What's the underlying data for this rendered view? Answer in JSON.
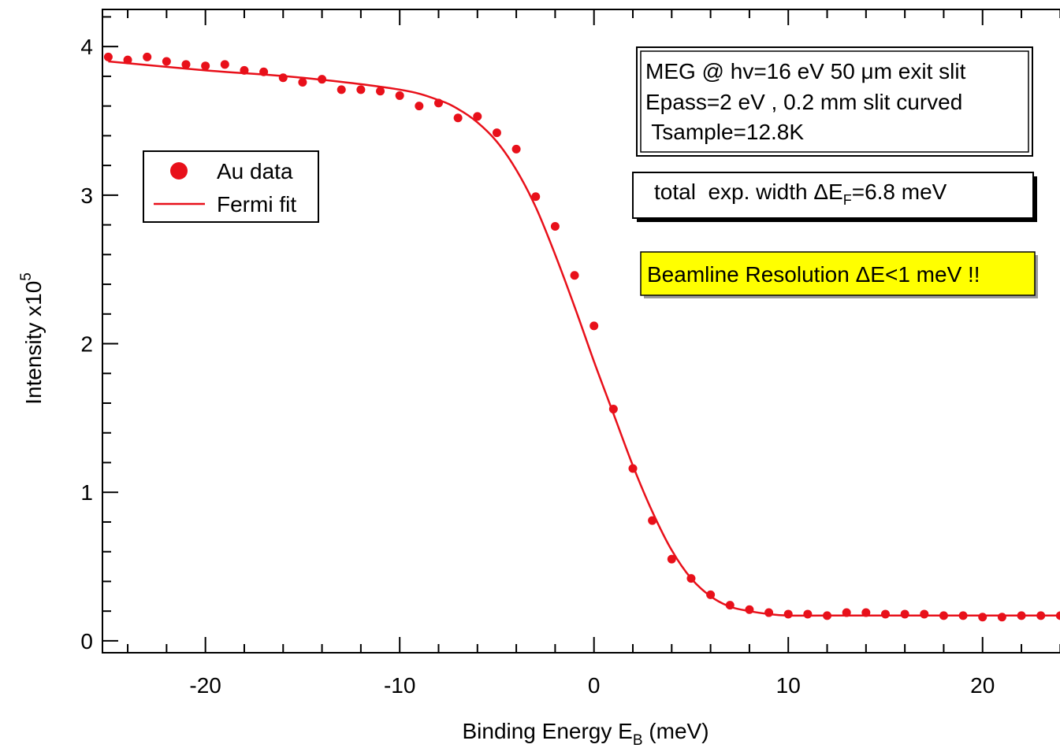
{
  "chart_data": {
    "type": "scatter",
    "xlabel_main": "Binding Energy E",
    "xlabel_sub": "B",
    "xlabel_unit": " (meV)",
    "ylabel_main": "Intensity x10",
    "ylabel_sup": "5",
    "xlim": [
      -25.3,
      25
    ],
    "ylim": [
      -0.08,
      4.25
    ],
    "x_ticks": [
      -20,
      -10,
      0,
      10,
      20
    ],
    "x_tick_labels": [
      "-20",
      "-10",
      "0",
      "10",
      "20"
    ],
    "y_ticks": [
      0,
      1,
      2,
      3,
      4
    ],
    "y_tick_labels": [
      "0",
      "1",
      "2",
      "3",
      "4"
    ],
    "grid": false,
    "legend": {
      "placement": "upper-left",
      "entries": [
        {
          "label": "Au data",
          "marker": "dot"
        },
        {
          "label": "Fermi fit",
          "marker": "line"
        }
      ]
    },
    "series": [
      {
        "name": "Au data",
        "kind": "scatter",
        "color": "#e8101a",
        "x": [
          -25,
          -24,
          -23,
          -22,
          -21,
          -20,
          -19,
          -18,
          -17,
          -16,
          -15,
          -14,
          -13,
          -12,
          -11,
          -10,
          -9,
          -8,
          -7,
          -6,
          -5,
          -4,
          -3,
          -2,
          -1,
          0,
          1,
          2,
          3,
          4,
          5,
          6,
          7,
          8,
          9,
          10,
          11,
          12,
          13,
          14,
          15,
          16,
          17,
          18,
          19,
          20,
          21,
          22,
          23,
          24,
          25
        ],
        "y": [
          3.93,
          3.91,
          3.93,
          3.9,
          3.88,
          3.87,
          3.88,
          3.84,
          3.83,
          3.79,
          3.76,
          3.78,
          3.71,
          3.71,
          3.7,
          3.67,
          3.6,
          3.62,
          3.52,
          3.53,
          3.42,
          3.31,
          2.99,
          2.79,
          2.46,
          2.12,
          1.56,
          1.16,
          0.81,
          0.55,
          0.42,
          0.31,
          0.24,
          0.21,
          0.19,
          0.18,
          0.18,
          0.17,
          0.19,
          0.19,
          0.18,
          0.18,
          0.18,
          0.17,
          0.17,
          0.16,
          0.16,
          0.17,
          0.17,
          0.17,
          0.17
        ]
      },
      {
        "name": "Fermi fit",
        "kind": "line",
        "color": "#e8101a",
        "x": [
          -25,
          -20,
          -15,
          -10,
          -8,
          -7,
          -6,
          -5,
          -4,
          -3,
          -2,
          -1,
          0,
          1,
          2,
          3,
          4,
          5,
          6,
          7,
          8,
          9,
          10,
          12,
          15,
          20,
          25
        ],
        "y": [
          3.9,
          3.84,
          3.79,
          3.71,
          3.64,
          3.58,
          3.49,
          3.36,
          3.17,
          2.92,
          2.6,
          2.25,
          1.88,
          1.53,
          1.18,
          0.87,
          0.61,
          0.42,
          0.3,
          0.23,
          0.2,
          0.18,
          0.17,
          0.17,
          0.17,
          0.17,
          0.17
        ]
      }
    ],
    "annotations": {
      "info_box": {
        "lines": [
          "MEG @ hv=16 eV 50 μm exit slit",
          "Epass=2 eV , 0.2 mm slit curved",
          " Tsample=12.8K"
        ]
      },
      "width_box": {
        "pre": "total  exp. width ΔE",
        "sub": "F",
        "post": "=6.8 meV"
      },
      "resolution_box": {
        "text": "Beamline Resolution ΔE<1 meV !!",
        "background": "#ffff00"
      }
    }
  }
}
